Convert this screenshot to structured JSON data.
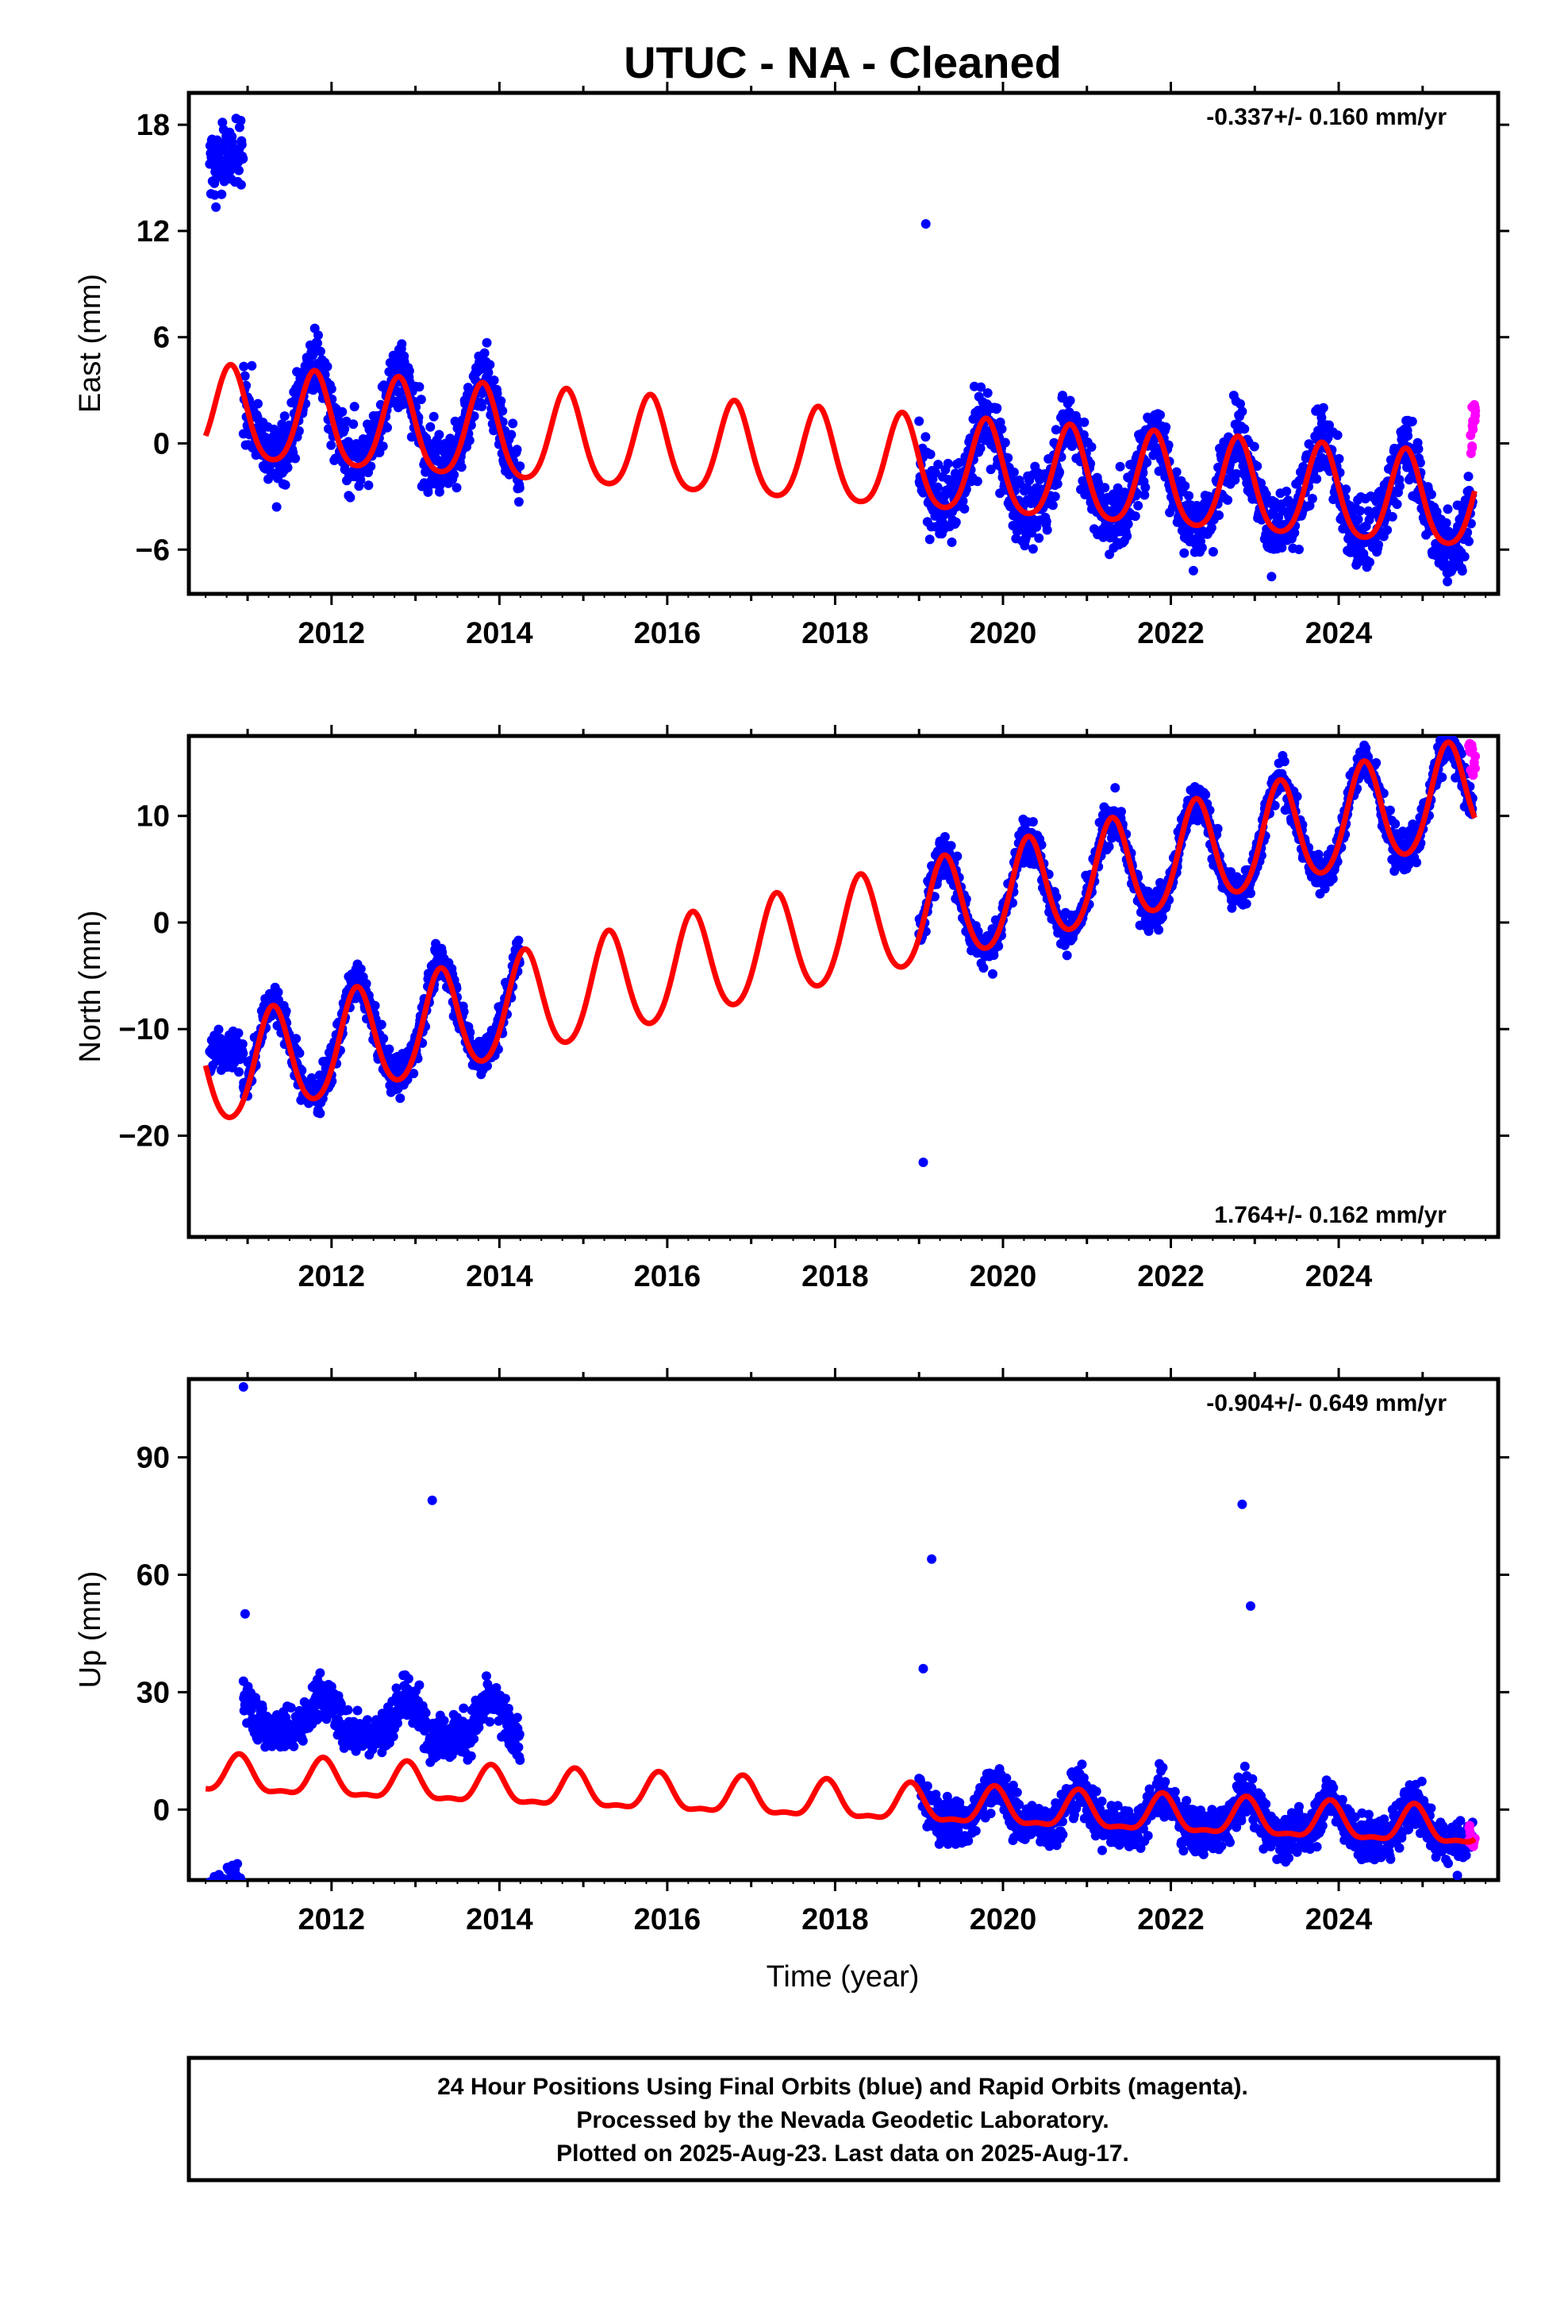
{
  "title": "UTUC  - NA - Cleaned",
  "xlabel": "Time (year)",
  "colors": {
    "final": "#0000ff",
    "rapid": "#ff00ff",
    "model": "#ff0000",
    "frame": "#000000"
  },
  "footer": {
    "line1": "24 Hour Positions Using Final Orbits (blue) and Rapid Orbits (magenta).",
    "line2": "Processed by the Nevada Geodetic Laboratory.",
    "line3": "Plotted on 2025-Aug-23. Last data on 2025-Aug-17."
  },
  "chart_data": [
    {
      "type": "scatter",
      "component": "east",
      "ylabel": "East (mm)",
      "rate_text": "-0.337+/- 0.160 mm/yr",
      "rate_position": "top-right",
      "xlim": [
        2010.3,
        2025.9
      ],
      "ylim": [
        -8.5,
        19.8
      ],
      "xticks": [
        2012,
        2014,
        2016,
        2018,
        2020,
        2022,
        2024
      ],
      "yticks": [
        -6,
        0,
        6,
        12,
        18
      ],
      "ytick_labels": [
        "−6",
        "0",
        "6",
        "12",
        "18"
      ],
      "data_segments": [
        {
          "start": 2010.55,
          "end": 2010.95,
          "offset": 16.0
        },
        {
          "start": 2010.95,
          "end": 2014.25,
          "offset": 0.3
        },
        {
          "start": 2019.0,
          "end": 2025.6,
          "offset": 0.0
        }
      ],
      "outliers": [
        {
          "x": 2019.08,
          "y": 12.4
        }
      ],
      "noise_sd": 1.4,
      "model": {
        "t0": 2010.5,
        "y0": 1.55,
        "rate": -0.337,
        "annual_amp": 2.6,
        "annual_phase_year": 2010.8,
        "semiannual_amp": 0.4
      },
      "rapid_tail": {
        "start": 2025.55,
        "end": 2025.63,
        "y_range": [
          -0.6,
          2.2
        ]
      }
    },
    {
      "type": "scatter",
      "component": "north",
      "ylabel": "North (mm)",
      "rate_text": "1.764+/- 0.162 mm/yr",
      "rate_position": "bottom-right",
      "xlim": [
        2010.3,
        2025.9
      ],
      "ylim": [
        -29.5,
        17.5
      ],
      "xticks": [
        2012,
        2014,
        2016,
        2018,
        2020,
        2022,
        2024
      ],
      "yticks": [
        -20,
        -10,
        0,
        10
      ],
      "ytick_labels": [
        "−20",
        "−10",
        "0",
        "10"
      ],
      "data_segments": [
        {
          "start": 2010.55,
          "end": 2010.95,
          "offset": -12.0
        },
        {
          "start": 2010.95,
          "end": 2014.25,
          "offset": 0.5
        },
        {
          "start": 2019.0,
          "end": 2025.6,
          "offset": 0.0
        }
      ],
      "outliers": [
        {
          "x": 2019.05,
          "y": -22.5
        }
      ],
      "noise_sd": 1.3,
      "model": {
        "t0": 2010.5,
        "y0": -14.5,
        "rate": 1.764,
        "annual_amp": 4.8,
        "annual_phase_year": 2011.3,
        "semiannual_amp": 0.5
      },
      "rapid_tail": {
        "start": 2025.55,
        "end": 2025.63,
        "y_range": [
          13.5,
          16.8
        ]
      }
    },
    {
      "type": "scatter",
      "component": "up",
      "ylabel": "Up (mm)",
      "rate_text": "-0.904+/- 0.649 mm/yr",
      "rate_position": "top-right",
      "xlim": [
        2010.3,
        2025.9
      ],
      "ylim": [
        -18,
        110
      ],
      "xticks": [
        2012,
        2014,
        2016,
        2018,
        2020,
        2022,
        2024
      ],
      "yticks": [
        0,
        30,
        60,
        90
      ],
      "ytick_labels": [
        "0",
        "30",
        "60",
        "90"
      ],
      "data_segments": [
        {
          "start": 2010.55,
          "end": 2010.95,
          "offset": -20.0
        },
        {
          "start": 2010.95,
          "end": 2014.25,
          "offset": 16.0
        },
        {
          "start": 2019.0,
          "end": 2025.6,
          "offset": 0.0
        }
      ],
      "outliers": [
        {
          "x": 2010.95,
          "y": 108
        },
        {
          "x": 2010.97,
          "y": 50
        },
        {
          "x": 2013.2,
          "y": 79
        },
        {
          "x": 2019.15,
          "y": 64
        },
        {
          "x": 2019.05,
          "y": 36
        },
        {
          "x": 2022.85,
          "y": 78
        },
        {
          "x": 2022.95,
          "y": 52
        }
      ],
      "noise_sd": 4.0,
      "model": {
        "t0": 2010.5,
        "y0": 8.5,
        "rate": -0.904,
        "annual_amp": 4.5,
        "annual_phase_year": 2010.9,
        "semiannual_amp": 1.6
      },
      "rapid_tail": {
        "start": 2025.55,
        "end": 2025.63,
        "y_range": [
          -11,
          -4
        ]
      }
    }
  ]
}
